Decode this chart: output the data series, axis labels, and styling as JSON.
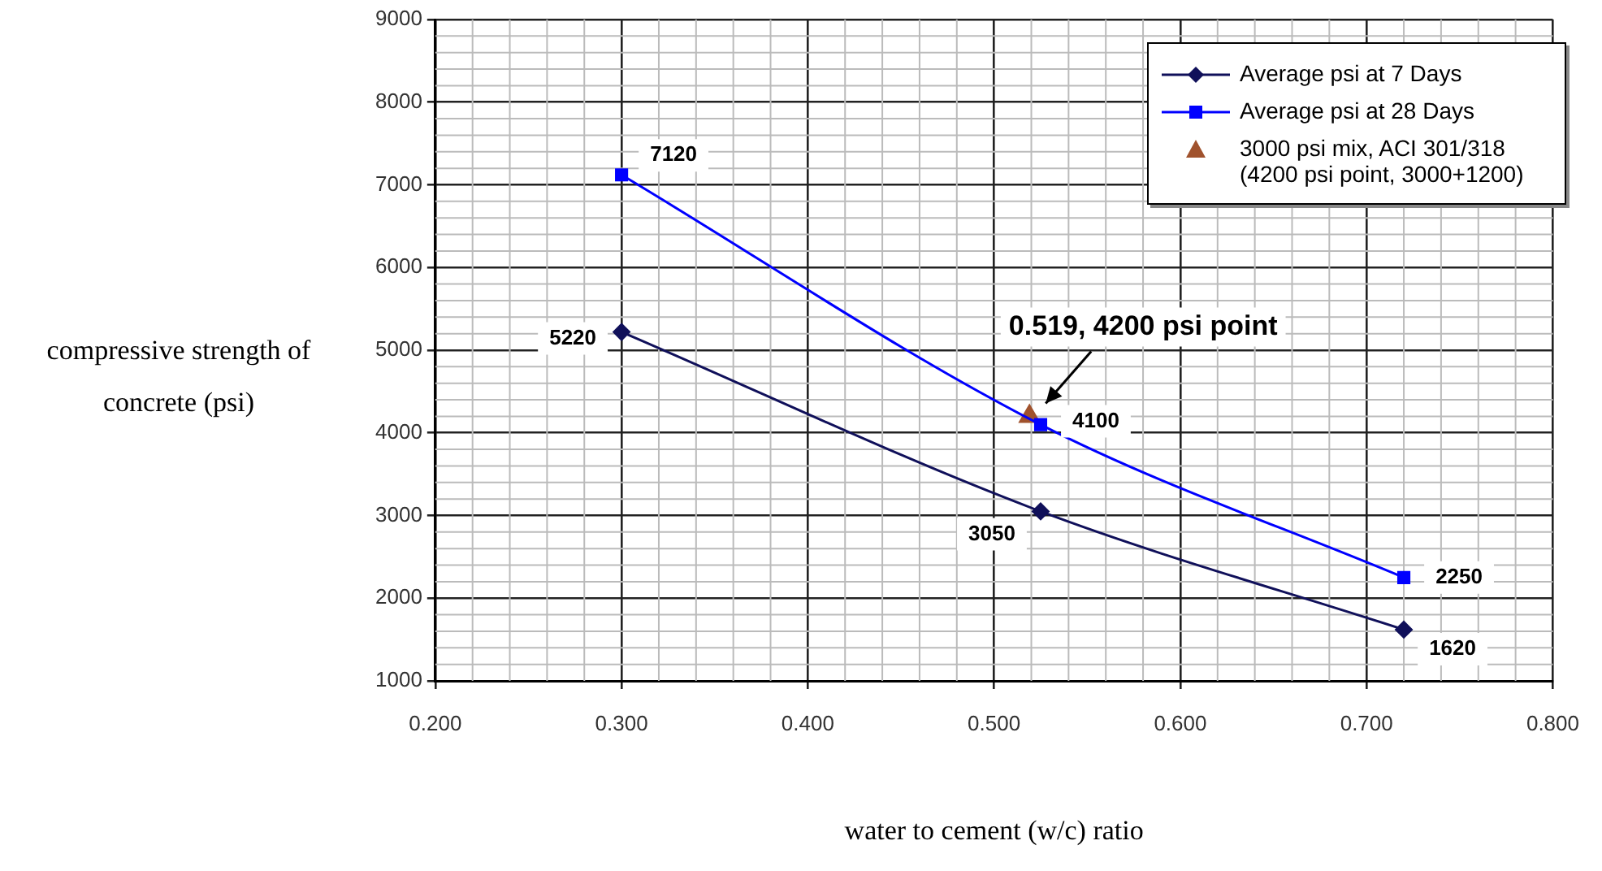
{
  "chart_data": {
    "type": "line",
    "xlabel": "water to cement (w/c) ratio",
    "ylabel": "compressive strength of concrete (psi)",
    "xlim": [
      0.2,
      0.8
    ],
    "xticks": [
      {
        "value": 0.2,
        "label": "0.200"
      },
      {
        "value": 0.3,
        "label": "0.300"
      },
      {
        "value": 0.4,
        "label": "0.400"
      },
      {
        "value": 0.5,
        "label": "0.500"
      },
      {
        "value": 0.6,
        "label": "0.600"
      },
      {
        "value": 0.7,
        "label": "0.700"
      },
      {
        "value": 0.8,
        "label": "0.800"
      }
    ],
    "ylim": [
      1000,
      9000
    ],
    "yticks": [
      1000,
      2000,
      3000,
      4000,
      5000,
      6000,
      7000,
      8000,
      9000
    ],
    "grid": true,
    "legend": "top right",
    "line_style": "solid",
    "series": [
      {
        "name": "Average psi at 7 Days",
        "color": "#10105a",
        "marker": "diamond",
        "x": [
          0.3,
          0.525,
          0.72
        ],
        "values": [
          5220,
          3050,
          1620
        ],
        "value_labels": [
          "5220",
          "3050",
          "1620"
        ]
      },
      {
        "name": "Average psi at 28 Days",
        "color": "#0000ff",
        "marker": "square",
        "x": [
          0.3,
          0.525,
          0.72
        ],
        "values": [
          7120,
          4100,
          2250
        ],
        "value_labels": [
          "7120",
          "4100",
          "2250"
        ]
      },
      {
        "name": "3000 psi mix, ACI 301/318 (4200 psi point, 3000+1200)",
        "type": "scatter",
        "color": "#a0522d",
        "marker": "triangle",
        "x": [
          0.519
        ],
        "values": [
          4200
        ]
      }
    ],
    "annotations": [
      {
        "text": "0.519, 4200 psi point",
        "x": 0.519,
        "y": 4200
      }
    ]
  }
}
